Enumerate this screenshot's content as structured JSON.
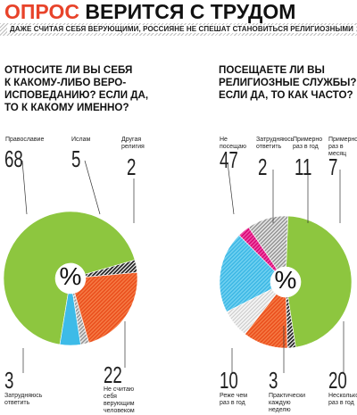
{
  "header": {
    "keyword": "ОПРОС",
    "title": "ВЕРИТСЯ С ТРУДОМ"
  },
  "subtitle": "ДАЖЕ СЧИТАЯ СЕБЯ ВЕРУЮЩИМИ, РОССИЯНЕ НЕ СПЕШАТ СТАНОВИТЬСЯ РЕЛИГИОЗНЫМИ",
  "questions": {
    "q1": [
      "ОТНОСИТЕ ЛИ ВЫ СЕБЯ",
      "К КАКОМУ-ЛИБО ВЕРО-",
      "ИСПОВЕДАНИЮ? ЕСЛИ ДА,",
      "ТО К КАКОМУ ИМЕННО?"
    ],
    "q2": [
      "ПОСЕЩАЕТЕ ЛИ ВЫ",
      "РЕЛИГИОЗНЫЕ СЛУЖБЫ?",
      "ЕСЛИ ДА, ТО КАК ЧАСТО?"
    ]
  },
  "center_symbol": "%",
  "colors": {
    "accent": "#e8432a",
    "green": "#8dc63f",
    "blue": "#3dbbe8",
    "orange": "#f05a28",
    "gray": "#9b9b9b",
    "black": "#222222",
    "pink": "#e2007a"
  },
  "chart_data": [
    {
      "type": "pie",
      "title": "ОТНОСИТЕ ЛИ ВЫ СЕБЯ К КАКОМУ-ЛИБО ВЕРОИСПОВЕДАНИЮ? ЕСЛИ ДА, ТО К КАКОМУ ИМЕННО?",
      "unit": "%",
      "slices": [
        {
          "label": "Православие",
          "value": 68,
          "color": "#8dc63f",
          "fill": "solid"
        },
        {
          "label": "Ислам",
          "value": 5,
          "color": "#3dbbe8",
          "fill": "solid"
        },
        {
          "label": "Другая религия",
          "value": 2,
          "color": "#9b9b9b",
          "fill": "hatched"
        },
        {
          "label": "Не считаю себя верующим человеком",
          "value": 22,
          "color": "#f05a28",
          "fill": "hatched"
        },
        {
          "label": "Затрудняюсь ответить",
          "value": 3,
          "color": "#222222",
          "fill": "hatched"
        }
      ]
    },
    {
      "type": "pie",
      "title": "ПОСЕЩАЕТЕ ЛИ ВЫ РЕЛИГИОЗНЫЕ СЛУЖБЫ? ЕСЛИ ДА, ТО КАК ЧАСТО?",
      "unit": "%",
      "slices": [
        {
          "label": "Не посещаю",
          "value": 47,
          "color": "#8dc63f",
          "fill": "solid"
        },
        {
          "label": "Затрудняюсь ответить",
          "value": 2,
          "color": "#222222",
          "fill": "hatched"
        },
        {
          "label": "Примерно раз в год",
          "value": 11,
          "color": "#f05a28",
          "fill": "hatched"
        },
        {
          "label": "Примерно раз в месяц",
          "value": 7,
          "color": "#dcdcdc",
          "fill": "hatched"
        },
        {
          "label": "Несколько раз в год",
          "value": 20,
          "color": "#3dbbe8",
          "fill": "hatched"
        },
        {
          "label": "Практически каждую неделю",
          "value": 3,
          "color": "#e2007a",
          "fill": "hatched"
        },
        {
          "label": "Реже чем раз в год",
          "value": 10,
          "color": "#9b9b9b",
          "fill": "hatched"
        }
      ]
    }
  ]
}
